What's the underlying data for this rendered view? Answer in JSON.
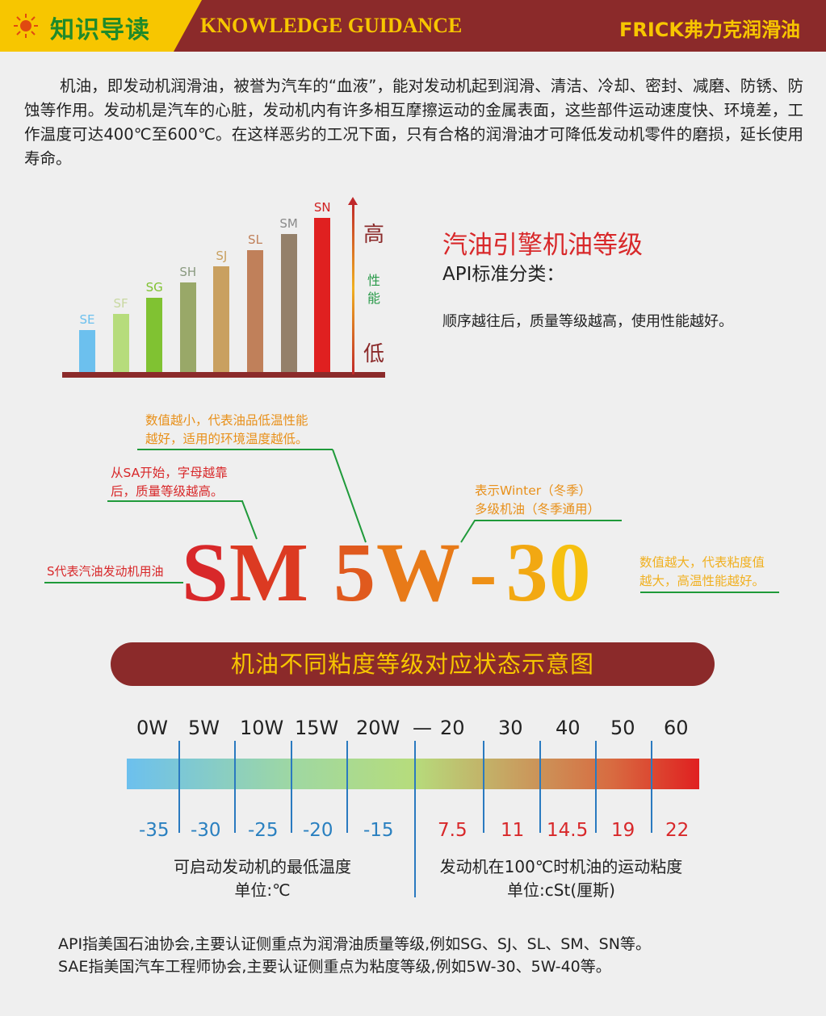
{
  "header": {
    "title_cn": "知识导读",
    "title_en": "KNOWLEDGE GUIDANCE",
    "brand": "FRICK弗力克润滑油",
    "icon": "sun-icon",
    "colors": {
      "bar": "#8b2a2a",
      "accent": "#f7c600",
      "green": "#1f8a2a"
    }
  },
  "intro": "机油，即发动机润滑油，被誉为汽车的“血液”，能对发动机起到润滑、清洁、冷却、密封、减磨、防锈、防蚀等作用。发动机是汽车的心脏，发动机内有许多相互摩擦运动的金属表面，这些部件运动速度快、环境差，工作温度可达400℃至600℃。在这样恶劣的工况下面，只有合格的润滑油才可降低发动机零件的磨损，延长使用寿命。",
  "chart_data": {
    "type": "bar",
    "categories": [
      "SE",
      "SF",
      "SG",
      "SH",
      "SJ",
      "SL",
      "SM",
      "SN"
    ],
    "values": [
      1,
      2,
      3,
      4,
      5,
      6,
      7,
      8
    ],
    "colors": [
      "#6cc0ee",
      "#b6dc7c",
      "#80c232",
      "#99a868",
      "#c9a060",
      "#c0805a",
      "#94806a",
      "#e02020"
    ],
    "label_colors": [
      "#6cc0ee",
      "#c8d8a0",
      "#80c232",
      "#8a9a80",
      "#c9a060",
      "#c0805a",
      "#8a8a8a",
      "#d02020"
    ],
    "axis": {
      "high": "高",
      "low": "低",
      "label": "性能"
    }
  },
  "grade": {
    "title": "汽油引擎机油等级",
    "subtitle": "API标准分类：",
    "desc": "顺序越往后，质量等级越高，使用性能越好。"
  },
  "code": {
    "s": "S",
    "m": "M",
    "five": "5",
    "w": "W",
    "dash": "-",
    "three": "3",
    "zero": "0"
  },
  "notes": {
    "small_num": "数值越小，代表油品低温性能越好，适用的环境温度越低。",
    "small_num_l1": "数值越小，代表油品低温性能",
    "small_num_l2": "越好，适用的环境温度越低。",
    "letter_l1": "从SA开始，字母越靠",
    "letter_l2": "后，质量等级越高。",
    "winter_l1": "表示Winter（冬季）",
    "winter_l2": "多级机油（冬季通用）",
    "s_means": "S代表汽油发动机用油",
    "big_l1": "数值越大，代表粘度值",
    "big_l2": "越大，高温性能越好。"
  },
  "banner": "机油不同粘度等级对应状态示意图",
  "scale": {
    "sae_low": [
      "0W",
      "5W",
      "10W",
      "15W",
      "20W"
    ],
    "dash": "—",
    "sae_high": [
      "20",
      "30",
      "40",
      "50",
      "60"
    ],
    "temps": [
      "-35",
      "-30",
      "-25",
      "-20",
      "-15"
    ],
    "visc": [
      "7.5",
      "11",
      "14.5",
      "19",
      "22"
    ],
    "left_caption": "可启动发动机的最低温度",
    "left_unit": "单位:℃",
    "right_caption": "发动机在100℃时机油的运动粘度",
    "right_unit": "单位:cSt(厘斯)"
  },
  "footer": [
    "API指美国石油协会,主要认证侧重点为润滑油质量等级,例如SG、SJ、SL、SM、SN等。",
    "SAE指美国汽车工程师协会,主要认证侧重点为粘度等级,例如5W-30、5W-40等。"
  ]
}
